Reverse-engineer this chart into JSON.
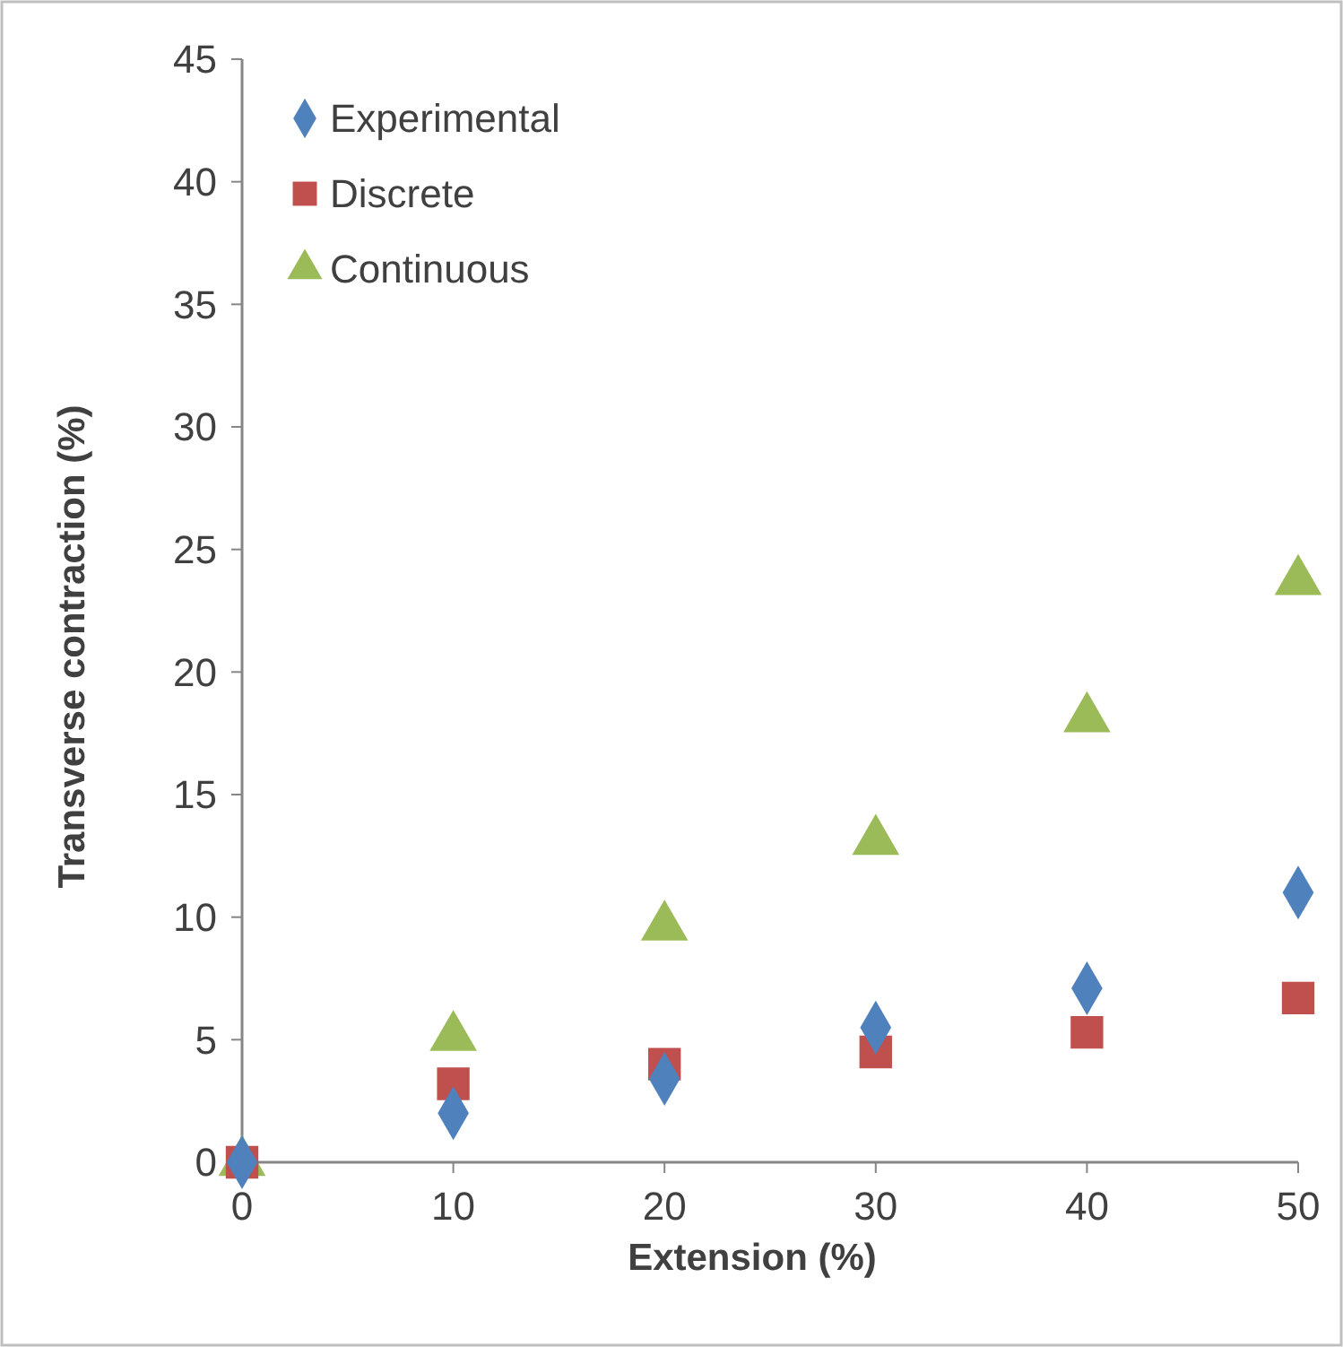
{
  "chart_data": {
    "type": "scatter",
    "xlabel": "Extension (%)",
    "ylabel": "Transverse contraction (%)",
    "x": [
      0,
      10,
      20,
      30,
      40,
      50
    ],
    "series": [
      {
        "name": "Experimental",
        "color": "#4f81bd",
        "marker": "diamond",
        "values": [
          0,
          2,
          3.4,
          5.5,
          7.1,
          11
        ]
      },
      {
        "name": "Discrete",
        "color": "#c0504d",
        "marker": "square",
        "values": [
          0,
          3.2,
          4,
          4.5,
          5.3,
          6.7
        ]
      },
      {
        "name": "Continuous",
        "color": "#9bbb59",
        "marker": "triangle",
        "values": [
          0,
          5.1,
          9.6,
          13.1,
          18.1,
          23.7
        ]
      }
    ],
    "xlim": [
      0,
      50
    ],
    "xticks": [
      0,
      10,
      20,
      30,
      40,
      50
    ],
    "ylim": [
      0,
      45
    ],
    "yticks": [
      0,
      5,
      10,
      15,
      20,
      25,
      30,
      35,
      40,
      45
    ],
    "grid": false,
    "legend": "top left"
  }
}
